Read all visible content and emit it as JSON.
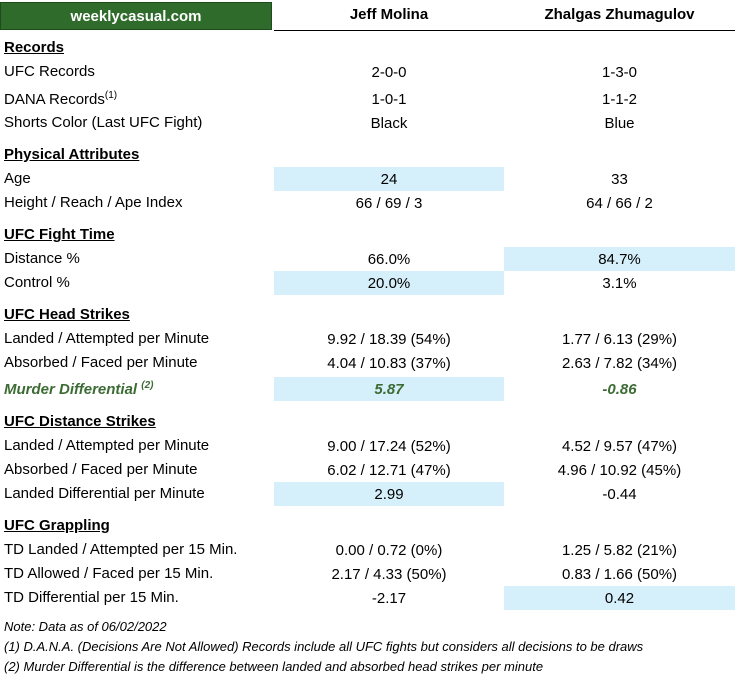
{
  "brand": "weeklycasual.com",
  "fighters": [
    "Jeff Molina",
    "Zhalgas Zhumagulov"
  ],
  "sections": {
    "records": {
      "title": "Records",
      "rows": [
        {
          "label": "UFC Records",
          "v1": "2-0-0",
          "v2": "1-3-0"
        },
        {
          "label": "DANA Records",
          "sup": "(1)",
          "v1": "1-0-1",
          "v2": "1-1-2"
        },
        {
          "label": "Shorts Color (Last UFC Fight)",
          "v1": "Black",
          "v2": "Blue"
        }
      ]
    },
    "physical": {
      "title": "Physical Attributes",
      "rows": [
        {
          "label": "Age",
          "v1": "24",
          "v2": "33"
        },
        {
          "label": "Height / Reach / Ape Index",
          "v1": "66 / 69 / 3",
          "v2": "64 / 66 / 2"
        }
      ]
    },
    "fight_time": {
      "title": "UFC Fight Time",
      "rows": [
        {
          "label": "Distance %",
          "v1": "66.0%",
          "v2": "84.7%"
        },
        {
          "label": "Control %",
          "v1": "20.0%",
          "v2": "3.1%"
        }
      ]
    },
    "head_strikes": {
      "title": "UFC Head Strikes",
      "rows": [
        {
          "label": "Landed / Attempted per Minute",
          "v1": "9.92 / 18.39 (54%)",
          "v2": "1.77 / 6.13 (29%)"
        },
        {
          "label": "Absorbed / Faced per Minute",
          "v1": "4.04 / 10.83 (37%)",
          "v2": "2.63 / 7.82 (34%)"
        },
        {
          "label": "Murder Differential",
          "sup": "(2)",
          "v1": "5.87",
          "v2": "-0.86"
        }
      ]
    },
    "distance_strikes": {
      "title": "UFC Distance Strikes",
      "rows": [
        {
          "label": "Landed / Attempted per Minute",
          "v1": "9.00 / 17.24 (52%)",
          "v2": "4.52 / 9.57 (47%)"
        },
        {
          "label": "Absorbed / Faced per Minute",
          "v1": "6.02 / 12.71 (47%)",
          "v2": "4.96 / 10.92 (45%)"
        },
        {
          "label": "Landed Differential per Minute",
          "v1": "2.99",
          "v2": "-0.44"
        }
      ]
    },
    "grappling": {
      "title": "UFC Grappling",
      "rows": [
        {
          "label": "TD Landed / Attempted per 15 Min.",
          "v1": "0.00 / 0.72 (0%)",
          "v2": "1.25 / 5.82 (21%)"
        },
        {
          "label": "TD Allowed / Faced per 15 Min.",
          "v1": "2.17 / 4.33 (50%)",
          "v2": "0.83 / 1.66 (50%)"
        },
        {
          "label": "TD Differential per 15 Min.",
          "v1": "-2.17",
          "v2": "0.42"
        }
      ]
    }
  },
  "notes": [
    "Note: Data as of 06/02/2022",
    "(1) D.A.N.A. (Decisions Are Not Allowed) Records include all UFC fights but considers all decisions to be draws",
    "(2) Murder Differential is the difference between landed and absorbed head strikes per minute"
  ],
  "colors": {
    "brand": "#2f6c2c",
    "highlight": "#d6f0fb",
    "accent_text": "#3d6b34"
  }
}
